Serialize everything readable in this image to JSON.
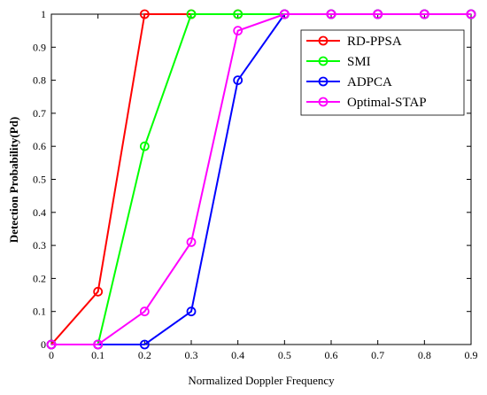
{
  "chart_data": {
    "type": "line",
    "xlabel": "Normalized Doppler Frequency",
    "ylabel": "Detection Probability(Pd)",
    "xlim": [
      0,
      0.9
    ],
    "ylim": [
      0,
      1
    ],
    "xticks": [
      "0",
      "0.1",
      "0.2",
      "0.3",
      "0.4",
      "0.5",
      "0.6",
      "0.7",
      "0.8",
      "0.9"
    ],
    "yticks": [
      "0",
      "0.1",
      "0.2",
      "0.3",
      "0.4",
      "0.5",
      "0.6",
      "0.7",
      "0.8",
      "0.9",
      "1"
    ],
    "grid": false,
    "legend_position": "top-right",
    "x": [
      0,
      0.1,
      0.2,
      0.3,
      0.4,
      0.5,
      0.6,
      0.7,
      0.8,
      0.9
    ],
    "series": [
      {
        "name": "RD-PPSA",
        "color": "#ff0000",
        "marker": "circle",
        "values": [
          0,
          0.16,
          1,
          1,
          1,
          1,
          1,
          1,
          1,
          1
        ]
      },
      {
        "name": "SMI",
        "color": "#00ff00",
        "marker": "circle",
        "values": [
          0,
          0,
          0.6,
          1,
          1,
          1,
          1,
          1,
          1,
          1
        ]
      },
      {
        "name": "ADPCA",
        "color": "#0000ff",
        "marker": "circle",
        "values": [
          0,
          0,
          0,
          0.1,
          0.8,
          1,
          1,
          1,
          1,
          1
        ]
      },
      {
        "name": "Optimal-STAP",
        "color": "#ff00ff",
        "marker": "circle",
        "values": [
          0,
          0,
          0.1,
          0.31,
          0.95,
          1,
          1,
          1,
          1,
          1
        ]
      }
    ]
  }
}
